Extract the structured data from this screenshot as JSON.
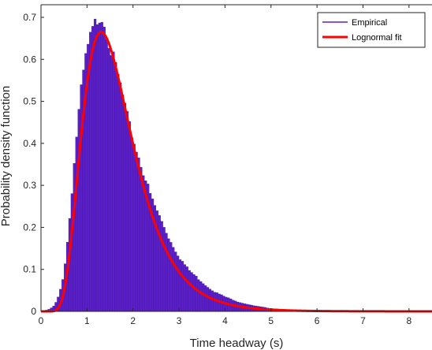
{
  "chart_data": {
    "type": "bar",
    "xlabel": "Time headway (s)",
    "ylabel": "Probability density function",
    "xlim": [
      0,
      8.5
    ],
    "ylim": [
      0,
      0.73
    ],
    "x_ticks": [
      0,
      1,
      2,
      3,
      4,
      5,
      6,
      7,
      8
    ],
    "y_ticks": [
      0,
      0.1,
      0.2,
      0.3,
      0.4,
      0.5,
      0.6,
      0.7
    ],
    "tick_labels_x": [
      "0",
      "1",
      "2",
      "3",
      "4",
      "5",
      "6",
      "7",
      "8"
    ],
    "tick_labels_y": [
      "0",
      "0.1",
      "0.2",
      "0.3",
      "0.4",
      "0.5",
      "0.6",
      "0.7"
    ],
    "grid": false,
    "legend_position": "top-right",
    "colors": {
      "empirical": "#5b1fc9",
      "fit": "#ff0000"
    },
    "series": [
      {
        "name": "Empirical",
        "kind": "histogram",
        "bin_width": 0.05,
        "x": [
          0.1,
          0.2,
          0.3,
          0.4,
          0.5,
          0.6,
          0.7,
          0.8,
          0.9,
          1.0,
          1.1,
          1.2,
          1.3,
          1.4,
          1.5,
          1.6,
          1.7,
          1.8,
          1.9,
          2.0,
          2.2,
          2.4,
          2.6,
          2.8,
          3.0,
          3.2,
          3.4,
          3.6,
          3.8,
          4.0,
          4.3,
          4.6,
          5.0,
          5.5
        ],
        "values": [
          0.002,
          0.006,
          0.015,
          0.04,
          0.09,
          0.19,
          0.32,
          0.45,
          0.55,
          0.62,
          0.66,
          0.69,
          0.71,
          0.68,
          0.63,
          0.59,
          0.55,
          0.5,
          0.45,
          0.41,
          0.34,
          0.27,
          0.22,
          0.17,
          0.13,
          0.1,
          0.08,
          0.06,
          0.045,
          0.035,
          0.022,
          0.014,
          0.007,
          0.003
        ]
      },
      {
        "name": "Lognormal fit",
        "kind": "line",
        "mu": 0.445,
        "sigma": 0.42
      }
    ]
  }
}
